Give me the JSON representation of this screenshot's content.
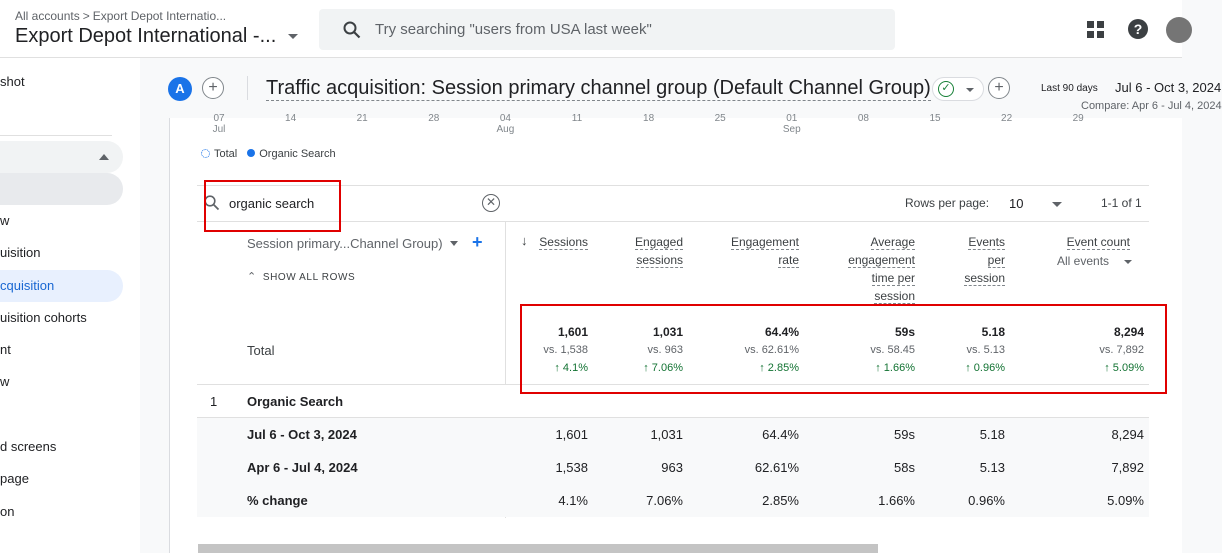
{
  "topbar": {
    "breadcrumb_root": "All accounts",
    "breadcrumb_sep": ">",
    "breadcrumb_account": "Export Depot Internatio...",
    "property_title": "Export Depot International -...",
    "search_placeholder": "Try searching \"users from USA last week\"",
    "help_label": "?"
  },
  "sidebar": {
    "items": [
      {
        "label": "shot"
      },
      {
        "label": "w"
      },
      {
        "label": "uisition"
      },
      {
        "label": "cquisition"
      },
      {
        "label": "uisition cohorts"
      },
      {
        "label": "nt"
      },
      {
        "label": "w"
      },
      {
        "label": "d screens"
      },
      {
        "label": "page"
      },
      {
        "label": "on"
      }
    ]
  },
  "report": {
    "avatar_letter": "A",
    "title": "Traffic acquisition: Session primary channel group (Default Channel Group)",
    "date_label": "Last 90 days",
    "date_range": "Jul 6 - Oct 3, 2024",
    "compare": "Compare: Apr 6 - Jul 4, 2024",
    "check": "✓",
    "plus": "+"
  },
  "chart": {
    "x_ticks": [
      {
        "day": "07",
        "month": "Jul"
      },
      {
        "day": "14",
        "month": ""
      },
      {
        "day": "21",
        "month": ""
      },
      {
        "day": "28",
        "month": ""
      },
      {
        "day": "04",
        "month": "Aug"
      },
      {
        "day": "11",
        "month": ""
      },
      {
        "day": "18",
        "month": ""
      },
      {
        "day": "25",
        "month": ""
      },
      {
        "day": "01",
        "month": "Sep"
      },
      {
        "day": "08",
        "month": ""
      },
      {
        "day": "15",
        "month": ""
      },
      {
        "day": "22",
        "month": ""
      },
      {
        "day": "29",
        "month": ""
      }
    ],
    "legend": {
      "total": "Total",
      "series": "Organic Search"
    },
    "series_color": "#1a73e8"
  },
  "table": {
    "filter_value": "organic search",
    "rows_per_page_label": "Rows per page:",
    "rows_per_page": "10",
    "range": "1-1 of 1",
    "dimension_header": "Session primary...Channel Group)",
    "show_all_rows": "SHOW ALL ROWS",
    "columns": {
      "sessions": "Sessions",
      "engaged_1": "Engaged",
      "engaged_2": "sessions",
      "er_1": "Engagement",
      "er_2": "rate",
      "aet_1": "Average",
      "aet_2": "engagement",
      "aet_3": "time per",
      "aet_4": "session",
      "eps_1": "Events",
      "eps_2": "per",
      "eps_3": "session",
      "ec_1": "Event count",
      "ec_sub": "All events"
    },
    "total": {
      "label": "Total",
      "values": [
        "1,601",
        "1,031",
        "64.4%",
        "59s",
        "5.18",
        "8,294"
      ],
      "vs": [
        "vs. 1,538",
        "vs. 963",
        "vs. 62.61%",
        "vs. 58.45",
        "vs. 5.13",
        "vs. 7,892"
      ],
      "delta": [
        "↑ 4.1%",
        "↑ 7.06%",
        "↑ 2.85%",
        "↑ 1.66%",
        "↑ 0.96%",
        "↑ 5.09%"
      ]
    },
    "row1": {
      "index": "1",
      "label": "Organic Search"
    },
    "subrows": [
      {
        "label": "Jul 6 - Oct 3, 2024",
        "values": [
          "1,601",
          "1,031",
          "64.4%",
          "59s",
          "5.18",
          "8,294"
        ]
      },
      {
        "label": "Apr 6 - Jul 4, 2024",
        "values": [
          "1,538",
          "963",
          "62.61%",
          "58s",
          "5.13",
          "7,892"
        ]
      },
      {
        "label": "% change",
        "values": [
          "4.1%",
          "7.06%",
          "2.85%",
          "1.66%",
          "0.96%",
          "5.09%"
        ]
      }
    ]
  },
  "colors": {
    "accent": "#1a73e8",
    "positive": "#137333",
    "highlight": "#e00000"
  }
}
